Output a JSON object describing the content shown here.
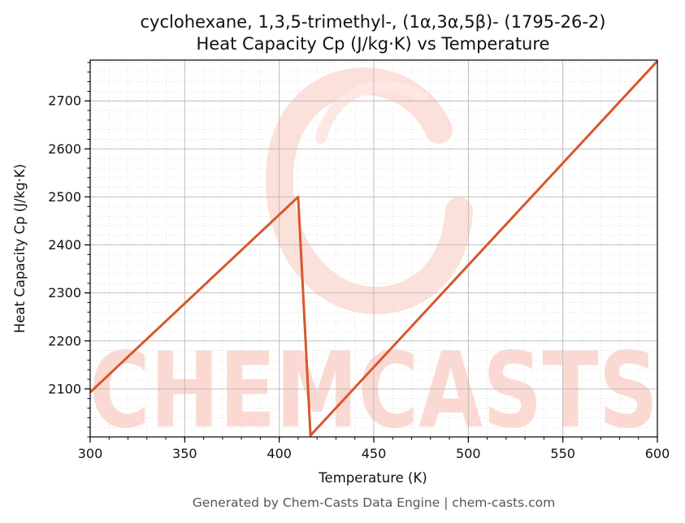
{
  "footer": "Generated by Chem-Casts Data Engine | chem-casts.com",
  "watermark": {
    "text": "CHEMCASTS",
    "color": "#fbd9d2"
  },
  "colors": {
    "line": "#d9572b",
    "grid_major": "#b8b8b8",
    "grid_minor": "#e4e4e4",
    "axis": "#000000"
  },
  "chart_data": {
    "type": "line",
    "title": "cyclohexane, 1,3,5-trimethyl-, (1α,3α,5β)- (1795-26-2)",
    "subtitle": "Heat Capacity Cp (J/kg·K) vs Temperature",
    "xlabel": "Temperature (K)",
    "ylabel": "Heat Capacity Cp (J/kg·K)",
    "xlim": [
      300,
      600
    ],
    "ylim": [
      2000,
      2785
    ],
    "xticks": [
      300,
      350,
      400,
      450,
      500,
      550,
      600
    ],
    "yticks": [
      2100,
      2200,
      2300,
      2400,
      2500,
      2600,
      2700
    ],
    "grid": true,
    "series": [
      {
        "x": [
          300,
          410,
          416.5,
          600
        ],
        "y": [
          2093,
          2500,
          2003,
          2783
        ]
      }
    ]
  }
}
